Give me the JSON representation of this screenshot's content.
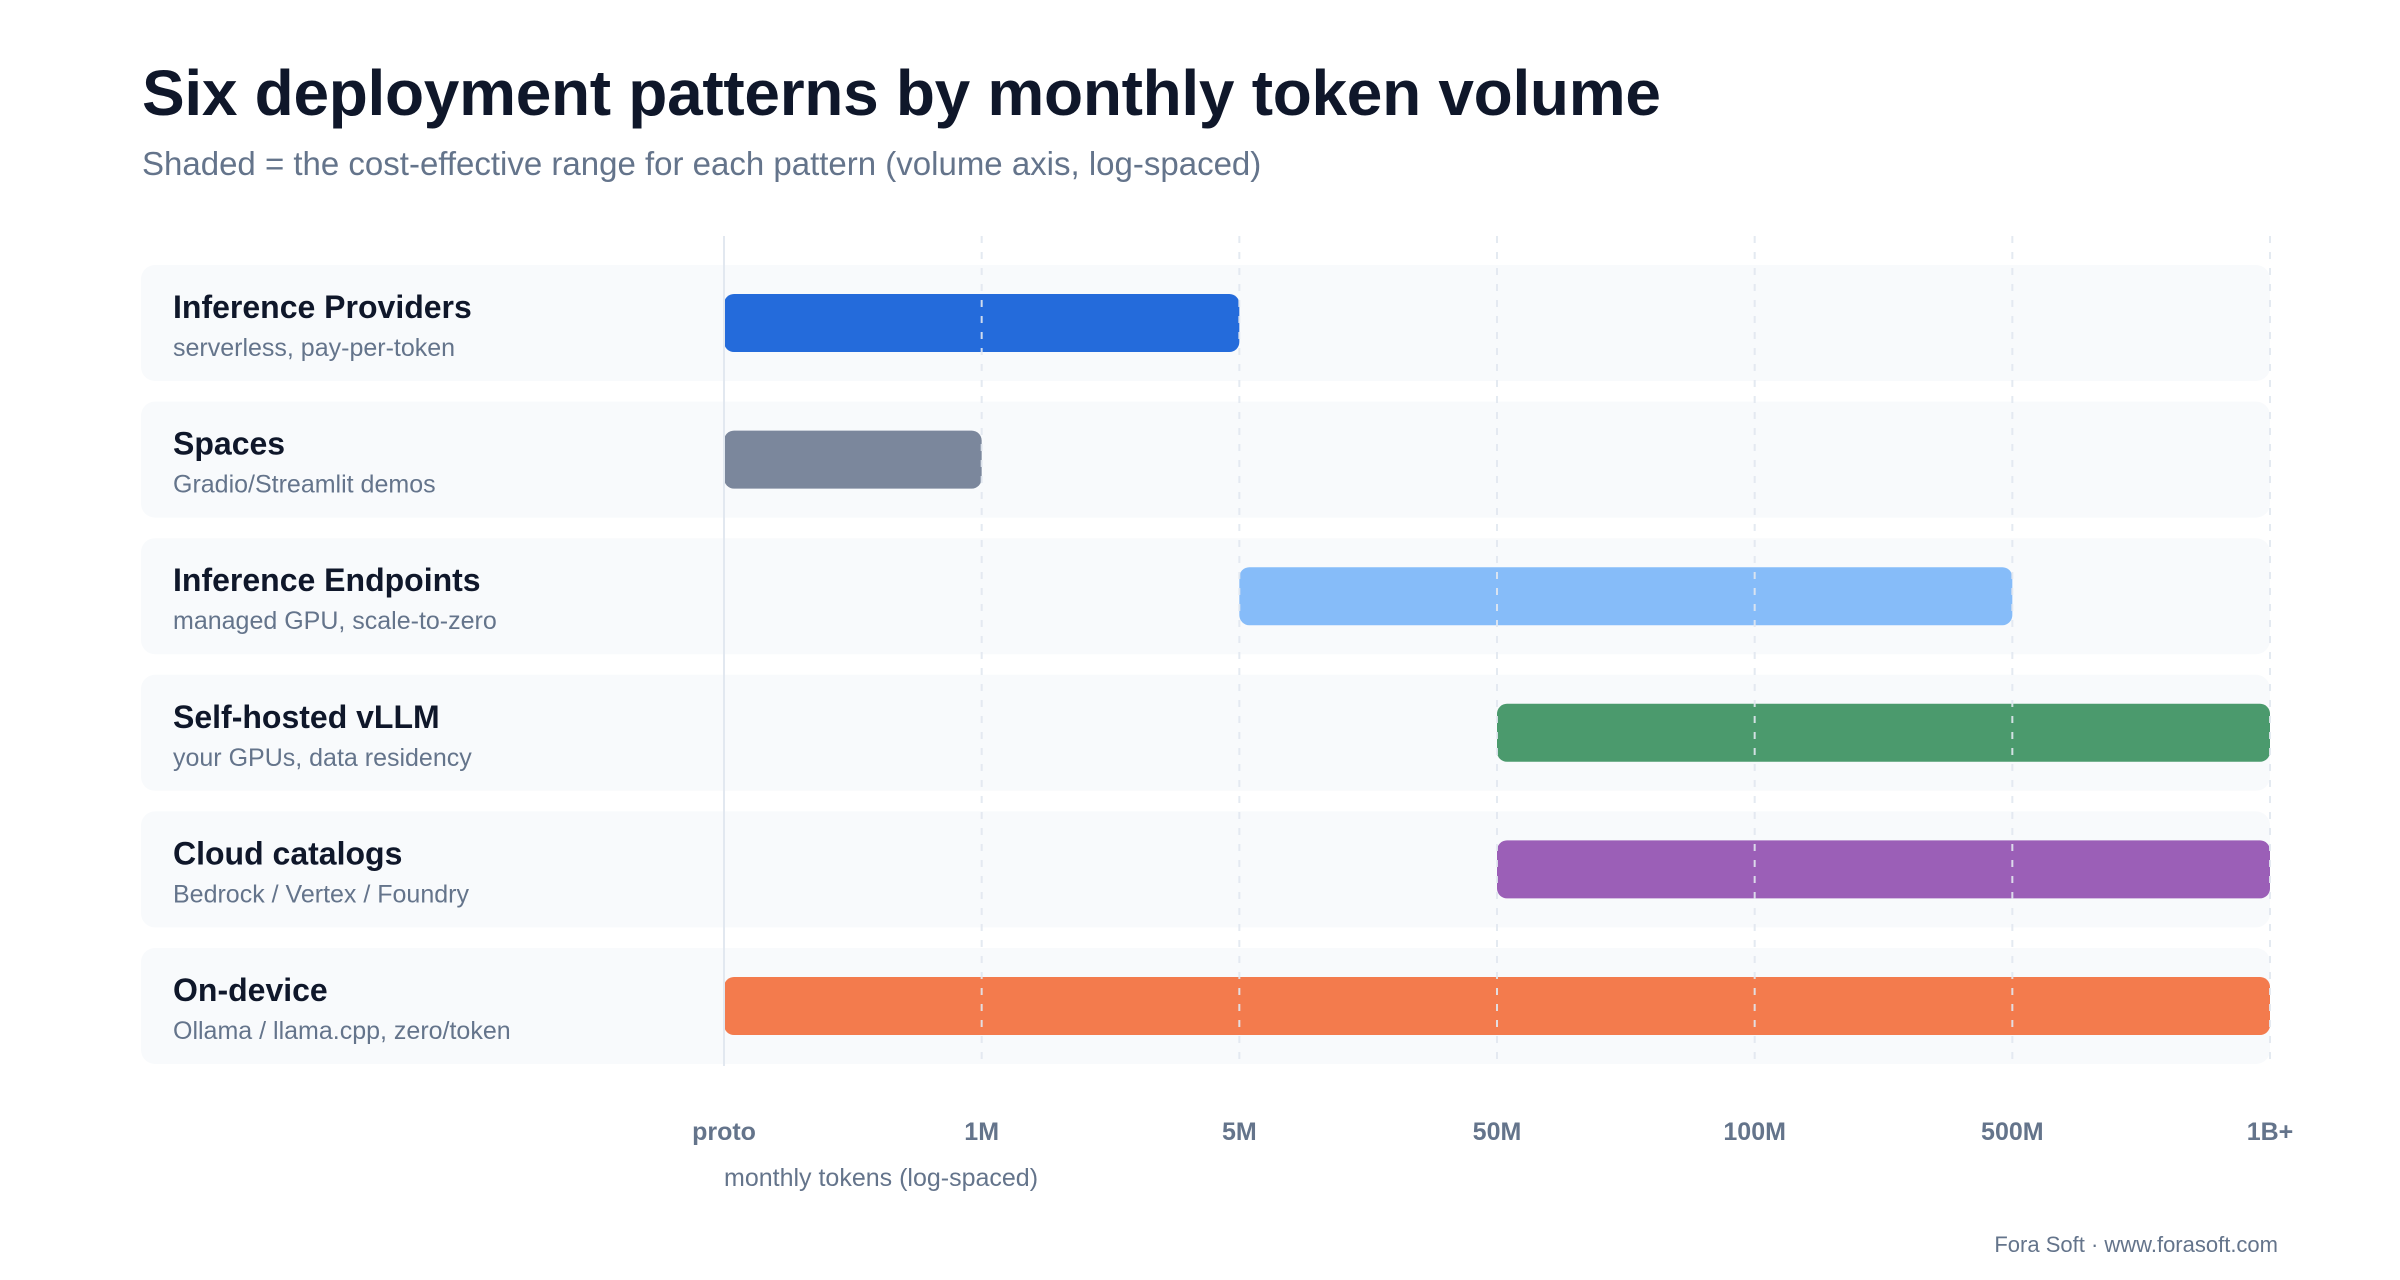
{
  "title": "Six deployment patterns by monthly token volume",
  "subtitle": "Shaded = the cost-effective range for each pattern (volume axis, log-spaced)",
  "footer": "Fora Soft · www.forasoft.com",
  "colors": {
    "row_bg": "#f8fafc",
    "grid": "#e2e8f0",
    "axis": "#e2e8f0",
    "label": "#0f172a",
    "sublabel": "#64748b",
    "tick": "#64748b"
  },
  "chart_data": {
    "type": "bar",
    "orientation": "horizontal-range",
    "xlabel": "monthly tokens (log-spaced)",
    "x_ticks": [
      "proto",
      "1M",
      "5M",
      "50M",
      "100M",
      "500M",
      "1B+"
    ],
    "grid": true,
    "series": [
      {
        "name": "Inference Providers",
        "description": "serverless, pay-per-token",
        "start": "proto",
        "end": "5M",
        "color": "#246bdb"
      },
      {
        "name": "Spaces",
        "description": "Gradio/Streamlit demos",
        "start": "proto",
        "end": "1M",
        "color": "#7b879c"
      },
      {
        "name": "Inference Endpoints",
        "description": "managed GPU, scale-to-zero",
        "start": "5M",
        "end": "500M",
        "color": "#86bcf9"
      },
      {
        "name": "Self-hosted vLLM",
        "description": "your GPUs, data residency",
        "start": "50M",
        "end": "1B+",
        "color": "#4b9a6d"
      },
      {
        "name": "Cloud catalogs",
        "description": "Bedrock / Vertex / Foundry",
        "start": "50M",
        "end": "1B+",
        "color": "#9b5fb7"
      },
      {
        "name": "On-device",
        "description": "Ollama / llama.cpp, zero/token",
        "start": "proto",
        "end": "1B+",
        "color": "#f37b4d"
      }
    ]
  }
}
